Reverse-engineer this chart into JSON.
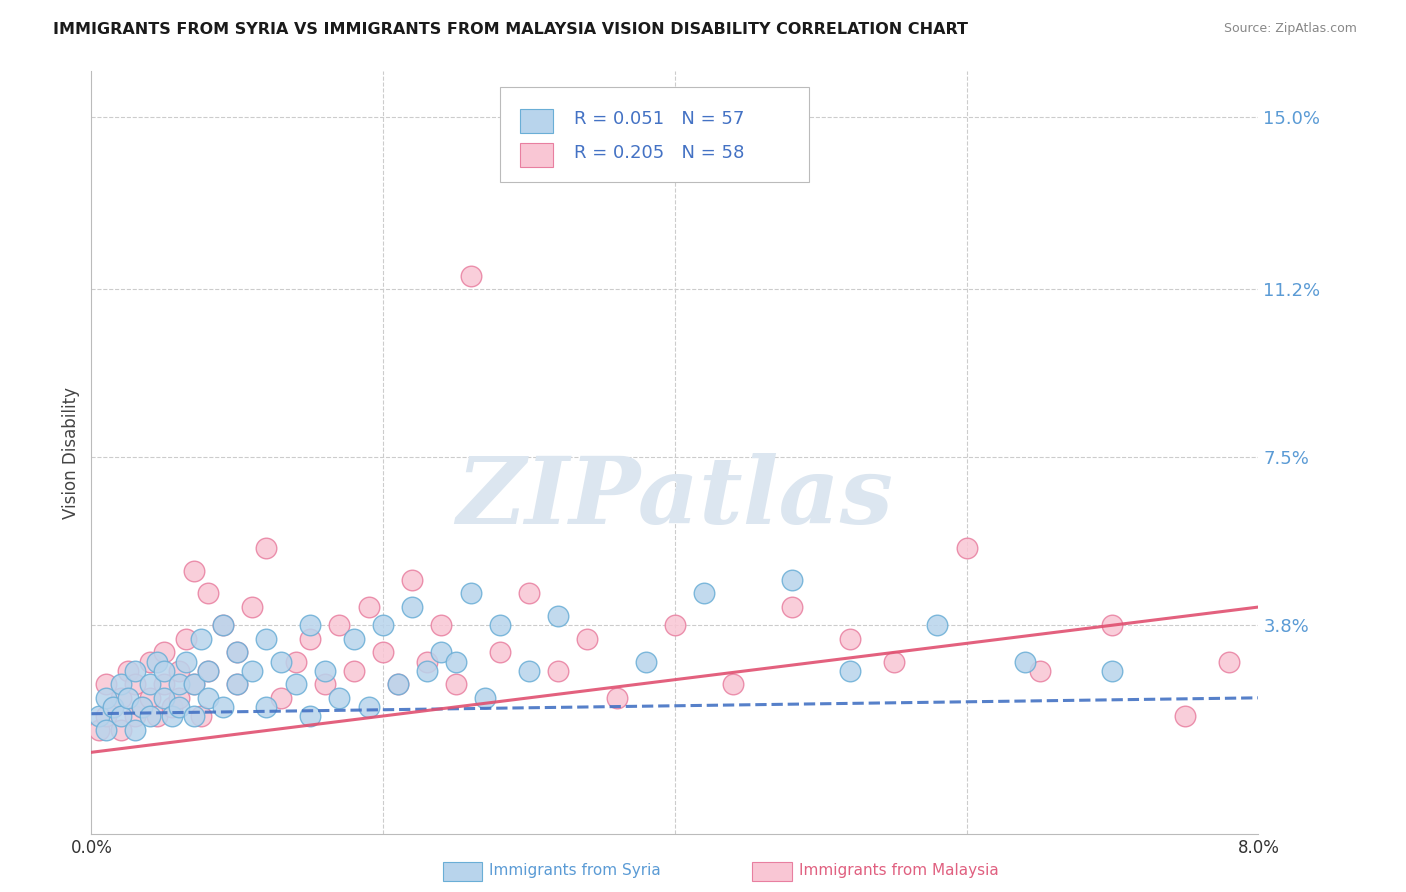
{
  "title": "IMMIGRANTS FROM SYRIA VS IMMIGRANTS FROM MALAYSIA VISION DISABILITY CORRELATION CHART",
  "source": "Source: ZipAtlas.com",
  "ylabel": "Vision Disability",
  "right_ytick_labels": [
    "15.0%",
    "11.2%",
    "7.5%",
    "3.8%"
  ],
  "right_ytick_values": [
    0.15,
    0.112,
    0.075,
    0.038
  ],
  "xmin": 0.0,
  "xmax": 0.08,
  "ymin": -0.008,
  "ymax": 0.16,
  "grid_color": "#cccccc",
  "background_color": "#ffffff",
  "syria_fill_color": "#b8d4ec",
  "syria_edge_color": "#6aaed6",
  "malaysia_fill_color": "#f9c6d4",
  "malaysia_edge_color": "#e87fa0",
  "syria_line_color": "#4472c4",
  "malaysia_line_color": "#e05070",
  "legend_text_color": "#4472c4",
  "watermark_text": "ZIPatlas",
  "watermark_color": "#dce6f0",
  "syria_R": 0.051,
  "syria_N": 57,
  "malaysia_R": 0.205,
  "malaysia_N": 58,
  "syria_line_start_y": 0.0185,
  "syria_line_end_y": 0.022,
  "malaysia_line_start_y": 0.01,
  "malaysia_line_end_y": 0.042,
  "syria_scatter_x": [
    0.0005,
    0.001,
    0.001,
    0.0015,
    0.002,
    0.002,
    0.0025,
    0.003,
    0.003,
    0.0035,
    0.004,
    0.004,
    0.0045,
    0.005,
    0.005,
    0.0055,
    0.006,
    0.006,
    0.0065,
    0.007,
    0.007,
    0.0075,
    0.008,
    0.008,
    0.009,
    0.009,
    0.01,
    0.01,
    0.011,
    0.012,
    0.012,
    0.013,
    0.014,
    0.015,
    0.015,
    0.016,
    0.017,
    0.018,
    0.019,
    0.02,
    0.021,
    0.022,
    0.023,
    0.024,
    0.025,
    0.026,
    0.027,
    0.028,
    0.03,
    0.032,
    0.038,
    0.042,
    0.048,
    0.052,
    0.058,
    0.064,
    0.07
  ],
  "syria_scatter_y": [
    0.018,
    0.022,
    0.015,
    0.02,
    0.025,
    0.018,
    0.022,
    0.015,
    0.028,
    0.02,
    0.025,
    0.018,
    0.03,
    0.022,
    0.028,
    0.018,
    0.025,
    0.02,
    0.03,
    0.025,
    0.018,
    0.035,
    0.022,
    0.028,
    0.038,
    0.02,
    0.032,
    0.025,
    0.028,
    0.035,
    0.02,
    0.03,
    0.025,
    0.038,
    0.018,
    0.028,
    0.022,
    0.035,
    0.02,
    0.038,
    0.025,
    0.042,
    0.028,
    0.032,
    0.03,
    0.045,
    0.022,
    0.038,
    0.028,
    0.04,
    0.03,
    0.045,
    0.048,
    0.028,
    0.038,
    0.03,
    0.028
  ],
  "malaysia_scatter_x": [
    0.0005,
    0.001,
    0.001,
    0.0015,
    0.002,
    0.002,
    0.0025,
    0.003,
    0.003,
    0.0035,
    0.004,
    0.004,
    0.0045,
    0.005,
    0.005,
    0.0055,
    0.006,
    0.006,
    0.0065,
    0.007,
    0.007,
    0.0075,
    0.008,
    0.008,
    0.009,
    0.01,
    0.01,
    0.011,
    0.012,
    0.013,
    0.014,
    0.015,
    0.016,
    0.017,
    0.018,
    0.019,
    0.02,
    0.021,
    0.022,
    0.023,
    0.024,
    0.025,
    0.026,
    0.028,
    0.03,
    0.032,
    0.034,
    0.036,
    0.04,
    0.044,
    0.048,
    0.052,
    0.055,
    0.06,
    0.065,
    0.07,
    0.075,
    0.078
  ],
  "malaysia_scatter_y": [
    0.015,
    0.018,
    0.025,
    0.02,
    0.022,
    0.015,
    0.028,
    0.018,
    0.025,
    0.02,
    0.022,
    0.03,
    0.018,
    0.025,
    0.032,
    0.02,
    0.028,
    0.022,
    0.035,
    0.025,
    0.05,
    0.018,
    0.045,
    0.028,
    0.038,
    0.032,
    0.025,
    0.042,
    0.055,
    0.022,
    0.03,
    0.035,
    0.025,
    0.038,
    0.028,
    0.042,
    0.032,
    0.025,
    0.048,
    0.03,
    0.038,
    0.025,
    0.115,
    0.032,
    0.045,
    0.028,
    0.035,
    0.022,
    0.038,
    0.025,
    0.042,
    0.035,
    0.03,
    0.055,
    0.028,
    0.038,
    0.018,
    0.03
  ]
}
